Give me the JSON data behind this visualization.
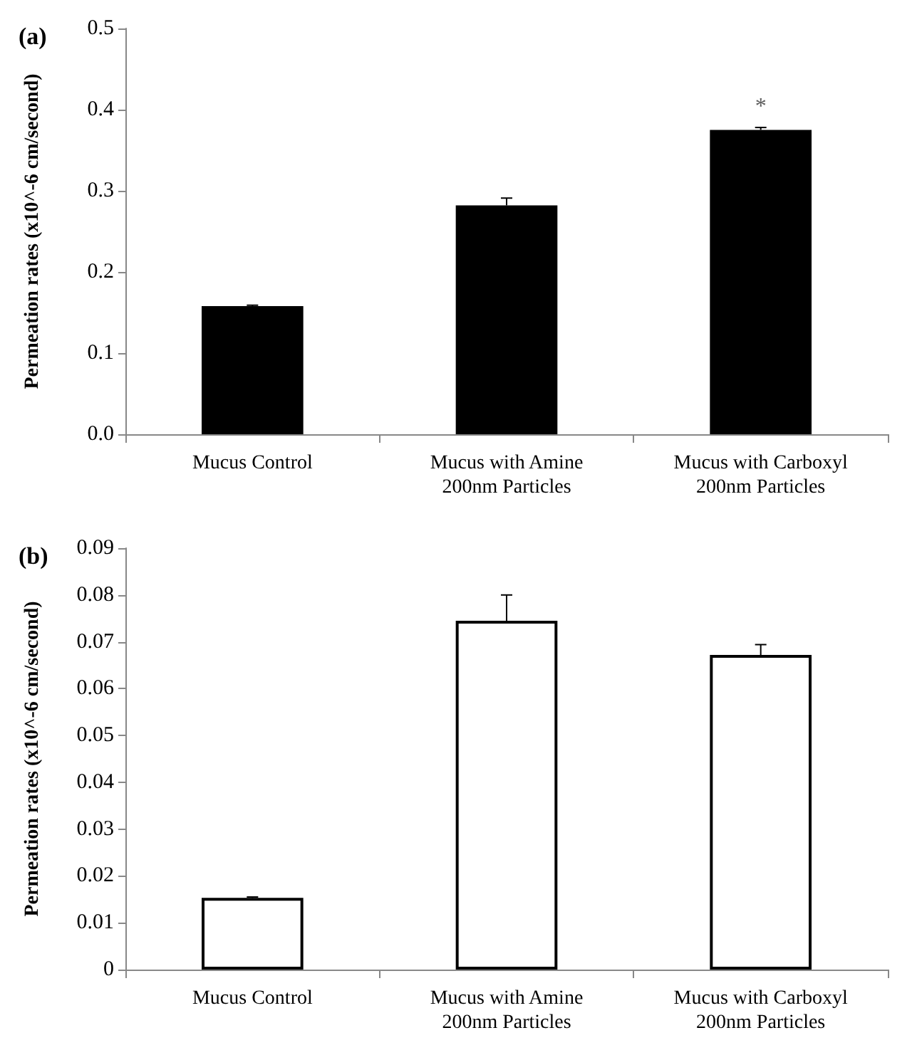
{
  "chart_data": [
    {
      "type": "bar",
      "title": "(a)",
      "ylabel": "Permeation rates (x10^-6 cm/second)",
      "categories": [
        "Mucus Control",
        "Mucus with Amine\n200nm Particles",
        "Mucus with Carboxyl\n200nm Particles"
      ],
      "values": [
        0.158,
        0.282,
        0.375
      ],
      "color": "#000000",
      "errors": [
        [
          0.158,
          0.159
        ],
        [
          0.282,
          0.291
        ],
        [
          0.375,
          0.378
        ]
      ],
      "ylim": [
        0,
        0.5
      ],
      "yticks": [
        {
          "value": 0,
          "label": "0.0"
        },
        0.1,
        0.2,
        0.3,
        0.4,
        0.5
      ],
      "grid": false,
      "annotations": [
        {
          "text": "*",
          "x": "Mucus with Carboxyl\n200nm Particles",
          "y": 0.378
        }
      ]
    },
    {
      "type": "bar",
      "title": "(b)",
      "ylabel": "Permeation rates (x10^-6 cm/second)",
      "categories": [
        "Mucus Control",
        "Mucus with Amine\n200nm Particles",
        "Mucus with Carboxyl\n200nm Particles"
      ],
      "values": [
        0.0153,
        0.0745,
        0.0672
      ],
      "color": "#ffffff",
      "errors": [
        [
          0.0153,
          0.0155
        ],
        [
          0.0745,
          0.08
        ],
        [
          0.0672,
          0.0694
        ]
      ],
      "ylim": [
        0,
        0.09
      ],
      "yticks": [
        0,
        0.01,
        0.02,
        0.03,
        0.04,
        0.05,
        0.06,
        0.07,
        0.08,
        0.09
      ],
      "grid": false
    }
  ]
}
